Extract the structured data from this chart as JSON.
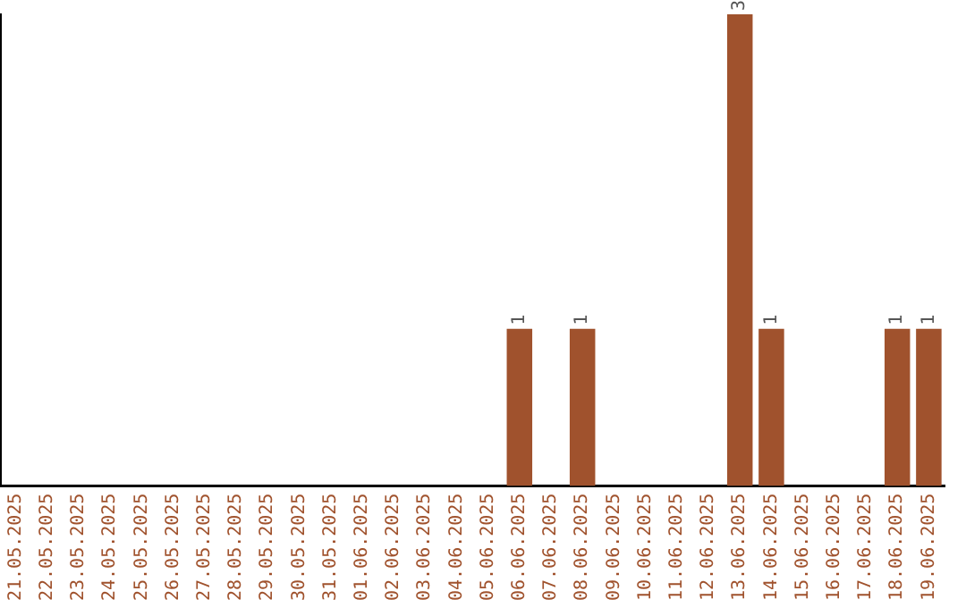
{
  "chart_data": {
    "type": "bar",
    "categories": [
      "21.05.2025",
      "22.05.2025",
      "23.05.2025",
      "24.05.2025",
      "25.05.2025",
      "26.05.2025",
      "27.05.2025",
      "28.05.2025",
      "29.05.2025",
      "30.05.2025",
      "31.05.2025",
      "01.06.2025",
      "02.06.2025",
      "03.06.2025",
      "04.06.2025",
      "05.06.2025",
      "06.06.2025",
      "07.06.2025",
      "08.06.2025",
      "09.06.2025",
      "10.06.2025",
      "11.06.2025",
      "12.06.2025",
      "13.06.2025",
      "14.06.2025",
      "15.06.2025",
      "16.06.2025",
      "17.06.2025",
      "18.06.2025",
      "19.06.2025"
    ],
    "values": [
      null,
      null,
      null,
      null,
      null,
      null,
      null,
      null,
      null,
      null,
      null,
      null,
      null,
      null,
      null,
      null,
      1,
      null,
      1,
      null,
      null,
      null,
      null,
      3,
      1,
      null,
      null,
      null,
      1,
      1
    ],
    "data_labels": true,
    "color": "#a0522d",
    "tick_labels": "x",
    "grid": false,
    "legend": false
  }
}
